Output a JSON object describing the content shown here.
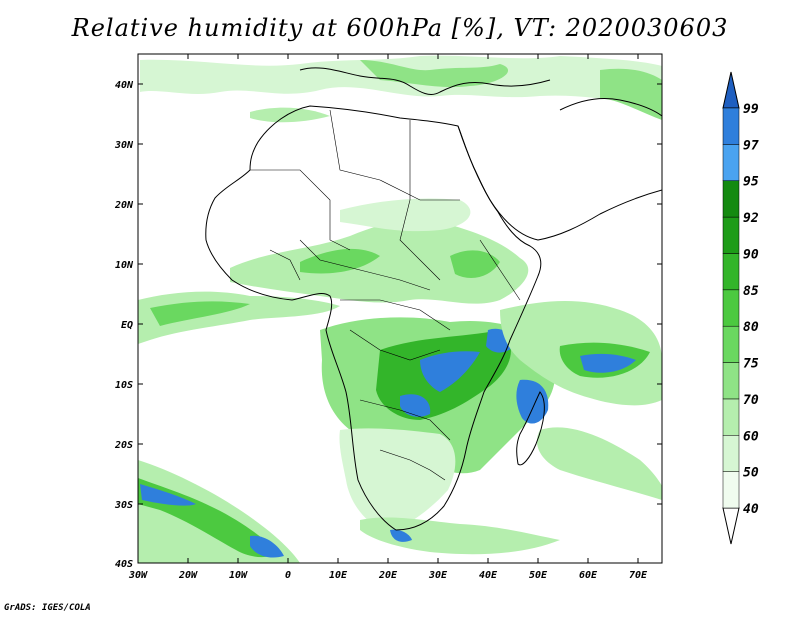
{
  "title": "Relative humidity at 600hPa [%], VT: 2020030603",
  "credit": "GrADS: IGES/COLA",
  "lat_ticks": [
    "40N",
    "30N",
    "20N",
    "10N",
    "EQ",
    "10S",
    "20S",
    "30S",
    "40S"
  ],
  "lon_ticks": [
    "30W",
    "20W",
    "10W",
    "0",
    "10E",
    "20E",
    "30E",
    "40E",
    "50E",
    "60E",
    "70E"
  ],
  "colorbar": {
    "levels": [
      "40",
      "50",
      "60",
      "70",
      "75",
      "80",
      "85",
      "90",
      "92",
      "95",
      "97",
      "99"
    ],
    "colors": [
      "#f0fcef",
      "#d6f6d3",
      "#b5eeae",
      "#8fe386",
      "#6ad860",
      "#4cc940",
      "#33b52a",
      "#1e9c18",
      "#148a10",
      "#4aa3f0",
      "#2f7fdc",
      "#1f5fc0"
    ]
  },
  "map": {
    "variable": "relative humidity",
    "level": "600hPa",
    "units": "%",
    "lat_range": [
      -40,
      45
    ],
    "lon_range": [
      -30,
      75
    ]
  }
}
